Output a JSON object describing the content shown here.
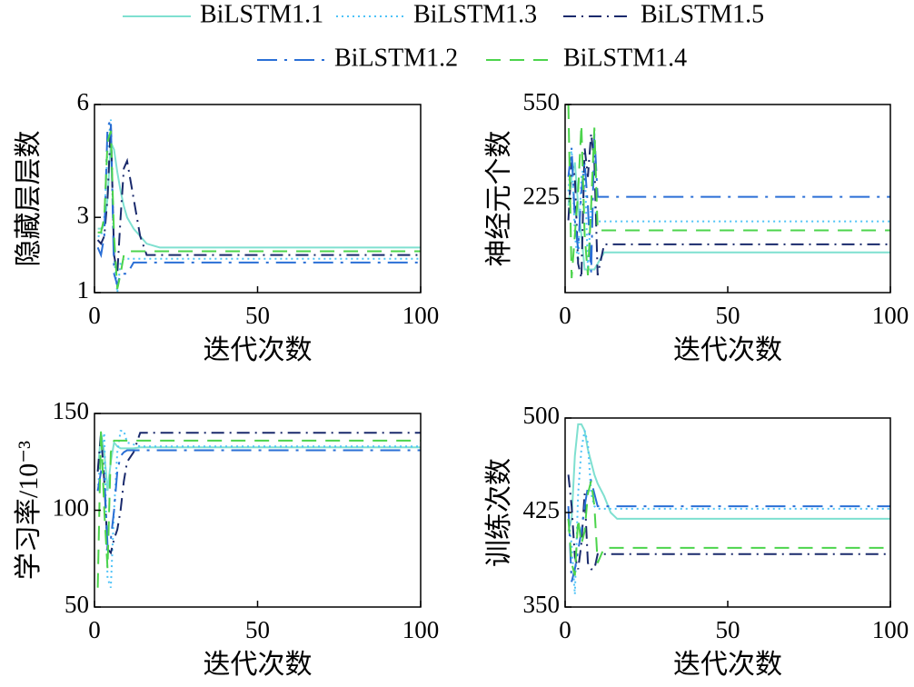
{
  "chart_data": [
    {
      "type": "line",
      "ylabel": "隐藏层层数",
      "xlabel": "迭代次数",
      "x": [
        1,
        2,
        3,
        4,
        5,
        6,
        7,
        8,
        9,
        10,
        12,
        14,
        16,
        20,
        100
      ],
      "xlim": [
        0,
        100
      ],
      "xticks": [
        0,
        50,
        100
      ],
      "ylim": [
        1,
        6
      ],
      "yticks": [
        1,
        3,
        6
      ],
      "series": [
        {
          "name": "BiLSTM1.1",
          "color": "#7fe0d0",
          "linestyle": "solid",
          "values": [
            2.7,
            2.7,
            2.8,
            3.5,
            5.0,
            4.8,
            4.2,
            3.7,
            3.3,
            3.0,
            2.7,
            2.5,
            2.3,
            2.2,
            2.2
          ]
        },
        {
          "name": "BiLSTM1.3",
          "color": "#4fc3f7",
          "linestyle": "dotted",
          "values": [
            2.5,
            2.5,
            3.0,
            4.8,
            5.6,
            2.0,
            1.0,
            1.8,
            1.9,
            1.9,
            1.9,
            1.9,
            1.9,
            1.9,
            1.9
          ]
        },
        {
          "name": "BiLSTM1.5",
          "color": "#1a2a6c",
          "linestyle": "dashdot",
          "values": [
            2.4,
            2.3,
            2.5,
            3.5,
            5.5,
            2.0,
            1.5,
            3.0,
            4.3,
            4.5,
            3.5,
            2.5,
            2.0,
            2.0,
            2.0
          ]
        },
        {
          "name": "BiLSTM1.2",
          "color": "#2a6fd6",
          "linestyle": "longdashdot",
          "values": [
            2.2,
            2.0,
            2.5,
            5.4,
            5.6,
            1.5,
            1.2,
            1.5,
            1.5,
            1.5,
            1.8,
            1.8,
            1.8,
            1.8,
            1.8
          ]
        },
        {
          "name": "BiLSTM1.4",
          "color": "#4cd44c",
          "linestyle": "dashed",
          "values": [
            2.6,
            2.6,
            3.0,
            5.0,
            5.3,
            2.5,
            1.1,
            1.5,
            2.0,
            2.1,
            2.1,
            2.1,
            2.1,
            2.1,
            2.1
          ]
        }
      ]
    },
    {
      "type": "line",
      "ylabel": "神经元个数",
      "xlabel": "迭代次数",
      "x": [
        1,
        2,
        3,
        4,
        5,
        6,
        7,
        8,
        9,
        10,
        12,
        14,
        16,
        20,
        100
      ],
      "xlim": [
        0,
        100
      ],
      "xticks": [
        0,
        50,
        100
      ],
      "ylim": [
        -100,
        550
      ],
      "yticks": [
        225,
        550
      ],
      "series": [
        {
          "name": "BiLSTM1.1",
          "color": "#7fe0d0",
          "linestyle": "solid",
          "values": [
            200,
            300,
            350,
            200,
            100,
            -20,
            -20,
            -20,
            -20,
            0,
            39,
            39,
            39,
            39,
            39
          ]
        },
        {
          "name": "BiLSTM1.3",
          "color": "#4fc3f7",
          "linestyle": "dotted",
          "values": [
            250,
            400,
            100,
            0,
            300,
            350,
            -20,
            200,
            200,
            146,
            146,
            146,
            146,
            146,
            146
          ]
        },
        {
          "name": "BiLSTM1.5",
          "color": "#1a2a6c",
          "linestyle": "dashdot",
          "values": [
            150,
            350,
            300,
            0,
            -50,
            400,
            300,
            450,
            350,
            -40,
            67,
            67,
            67,
            67,
            67
          ]
        },
        {
          "name": "BiLSTM1.2",
          "color": "#2a6fd6",
          "linestyle": "longdashdot",
          "values": [
            300,
            400,
            150,
            50,
            250,
            350,
            200,
            -30,
            450,
            231,
            231,
            231,
            231,
            231,
            231
          ]
        },
        {
          "name": "BiLSTM1.4",
          "color": "#4cd44c",
          "linestyle": "dashed",
          "values": [
            550,
            -50,
            100,
            250,
            480,
            100,
            -40,
            200,
            470,
            115,
            115,
            115,
            115,
            115,
            115
          ]
        }
      ]
    },
    {
      "type": "line",
      "ylabel": "学习率/10⁻³",
      "xlabel": "迭代次数",
      "x": [
        1,
        2,
        3,
        4,
        5,
        6,
        7,
        8,
        9,
        10,
        12,
        14,
        16,
        20,
        100
      ],
      "xlim": [
        0,
        100
      ],
      "xticks": [
        0,
        50,
        100
      ],
      "ylim": [
        50,
        150
      ],
      "yticks": [
        50,
        100,
        150
      ],
      "series": [
        {
          "name": "BiLSTM1.1",
          "color": "#7fe0d0",
          "linestyle": "solid",
          "values": [
            120,
            140,
            130,
            110,
            125,
            135,
            133,
            132,
            132,
            132,
            132,
            132.5,
            132.5,
            132.5,
            132.5
          ]
        },
        {
          "name": "BiLSTM1.3",
          "color": "#4fc3f7",
          "linestyle": "dotted",
          "values": [
            110,
            130,
            140,
            65,
            60,
            100,
            130,
            141,
            141,
            135,
            134,
            133,
            133,
            133,
            133
          ]
        },
        {
          "name": "BiLSTM1.5",
          "color": "#1a2a6c",
          "linestyle": "dashdot",
          "values": [
            120,
            140,
            115,
            80,
            78,
            85,
            90,
            100,
            115,
            125,
            130,
            140,
            140,
            140,
            140
          ]
        },
        {
          "name": "BiLSTM1.2",
          "color": "#2a6fd6",
          "linestyle": "longdashdot",
          "values": [
            110,
            120,
            118,
            82,
            85,
            100,
            120,
            128,
            130,
            131,
            131,
            131,
            131,
            131,
            131
          ]
        },
        {
          "name": "BiLSTM1.4",
          "color": "#4cd44c",
          "linestyle": "dashed",
          "values": [
            60,
            142,
            100,
            70,
            130,
            136,
            136,
            136,
            136,
            136,
            136,
            136,
            136,
            136,
            136
          ]
        }
      ]
    },
    {
      "type": "line",
      "ylabel": "训练次数",
      "xlabel": "迭代次数",
      "x": [
        1,
        2,
        3,
        4,
        5,
        6,
        7,
        8,
        9,
        10,
        12,
        14,
        16,
        20,
        100
      ],
      "xlim": [
        0,
        100
      ],
      "xticks": [
        0,
        50,
        100
      ],
      "ylim": [
        350,
        500
      ],
      "yticks": [
        350,
        425,
        500
      ],
      "series": [
        {
          "name": "BiLSTM1.1",
          "color": "#7fe0d0",
          "linestyle": "solid",
          "values": [
            410,
            420,
            470,
            495,
            495,
            490,
            475,
            465,
            455,
            448,
            438,
            425,
            420,
            420,
            420
          ]
        },
        {
          "name": "BiLSTM1.3",
          "color": "#4fc3f7",
          "linestyle": "dotted",
          "values": [
            420,
            400,
            360,
            440,
            475,
            490,
            480,
            440,
            430,
            428,
            428,
            428,
            428,
            428,
            428
          ]
        },
        {
          "name": "BiLSTM1.5",
          "color": "#1a2a6c",
          "linestyle": "dashdot",
          "values": [
            455,
            430,
            390,
            380,
            400,
            440,
            385,
            380,
            380,
            392,
            392,
            392,
            392,
            392,
            392
          ]
        },
        {
          "name": "BiLSTM1.2",
          "color": "#2a6fd6",
          "linestyle": "longdashdot",
          "values": [
            430,
            370,
            380,
            395,
            410,
            430,
            445,
            450,
            440,
            430,
            430,
            430,
            430,
            430,
            430
          ]
        },
        {
          "name": "BiLSTM1.4",
          "color": "#4cd44c",
          "linestyle": "dashed",
          "values": [
            420,
            385,
            375,
            420,
            400,
            410,
            440,
            450,
            430,
            385,
            397,
            397,
            397,
            397,
            397
          ]
        }
      ]
    }
  ]
}
